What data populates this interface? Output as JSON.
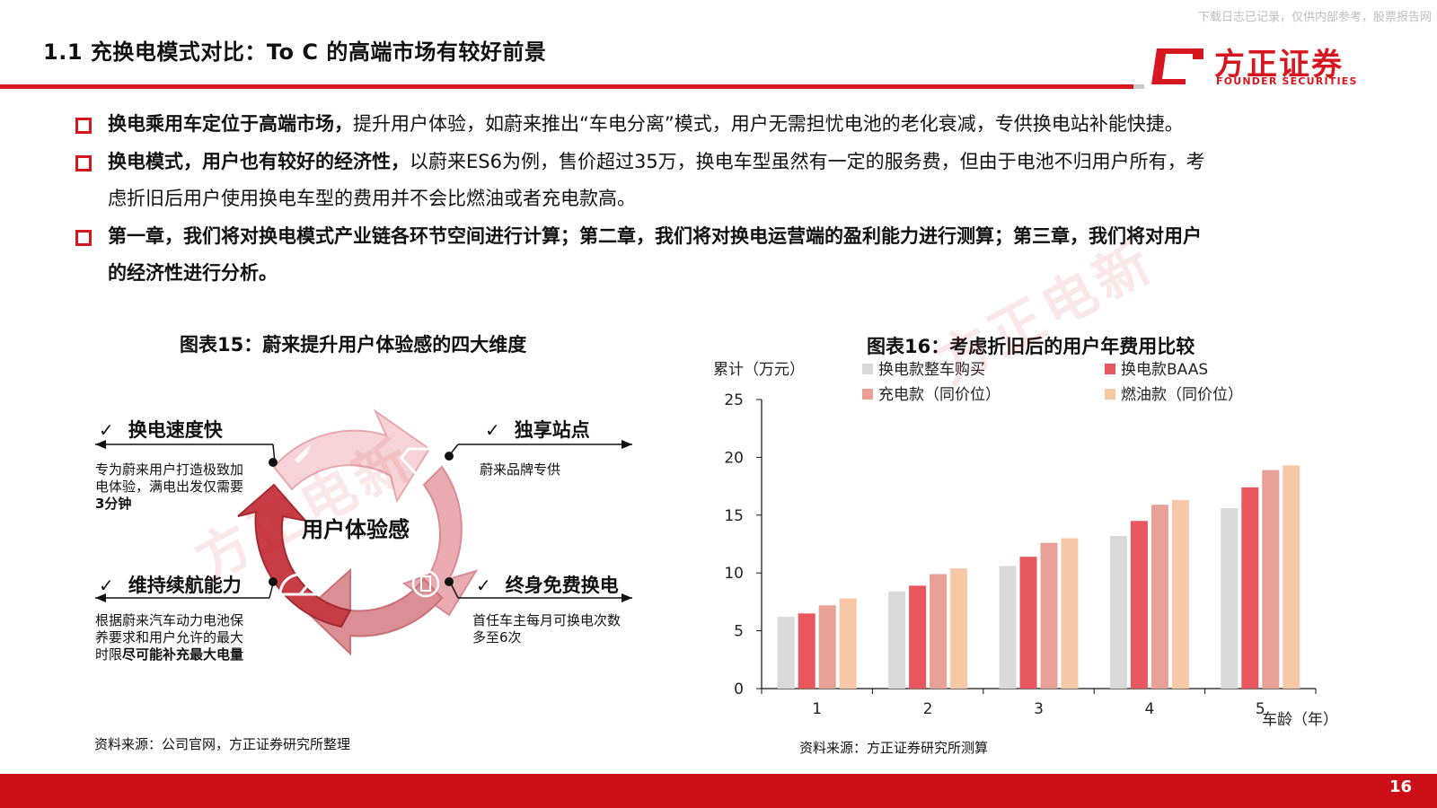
{
  "header": {
    "title": "1.1 充换电模式对比：To C 的高端市场有较好前景",
    "top_note": "下载日志已记录，仅供内部参考，股票报告网"
  },
  "logo": {
    "cn": "方正证券",
    "en": "FOUNDER SECURITIES"
  },
  "bullets": [
    {
      "bold": "换电乘用车定位于高端市场，",
      "text": "提升用户体验，如蔚来推出“车电分离”模式，用户无需担忧电池的老化衰减，专供换电站补能快捷。"
    },
    {
      "bold": "换电模式，用户也有较好的经济性，",
      "text": "以蔚来ES6为例，售价超过35万，换电车型虽然有一定的服务费，但由于电池不归用户所有，考",
      "text2": "虑折旧后用户使用换电车型的费用并不会比燃油或者充电款高。"
    },
    {
      "bold": "第一章，我们将对换电模式产业链各环节空间进行计算；第二章，我们将对换电运营端的盈利能力进行测算；第三章，我们将对用户",
      "bold2": "的经济性进行分析。"
    }
  ],
  "figure15": {
    "caption": "图表15：蔚来提升用户体验感的四大维度",
    "center_label": "用户体验感",
    "check": "✓",
    "items": [
      {
        "title": "换电速度快",
        "desc1": "专为蔚来用户打造极致加",
        "desc2": "电体验，满电出发仅需要",
        "desc3": "3分钟"
      },
      {
        "title": "独享站点",
        "desc1": "蔚来品牌专供"
      },
      {
        "title": "维持续航能力",
        "desc1": "根据蔚来汽车动力电池保",
        "desc2": "养要求和用户允许的最大",
        "desc3_plain": "时限",
        "desc3_bold": "尽可能补充最大电量"
      },
      {
        "title": "终身免费换电",
        "desc1": "首任车主每月可换电次数",
        "desc2": "多至6次"
      }
    ],
    "source": "资料来源：公司官网，方正证券研究所整理"
  },
  "figure16": {
    "caption": "图表16：考虑折旧后的用户年费用比较",
    "source": "资料来源：方正证券研究所测算"
  },
  "watermark": {
    "text": "方正电新"
  },
  "chart_data": {
    "type": "bar",
    "ylabel": "累计（万元）",
    "xlabel": "车龄（年）",
    "ylim": [
      0,
      25
    ],
    "yticks": [
      0,
      5,
      10,
      15,
      20,
      25
    ],
    "categories": [
      "1",
      "2",
      "3",
      "4",
      "5"
    ],
    "legend_position": "top",
    "series": [
      {
        "name": "换电款整车购买",
        "color": "#d9d9d9",
        "values": [
          6.2,
          8.4,
          10.6,
          13.2,
          15.6
        ]
      },
      {
        "name": "换电款BAAS",
        "color": "#e8575d",
        "values": [
          6.5,
          8.9,
          11.4,
          14.5,
          17.4
        ]
      },
      {
        "name": "充电款（同价位）",
        "color": "#e79f96",
        "values": [
          7.2,
          9.9,
          12.6,
          15.9,
          18.9
        ]
      },
      {
        "name": "燃油款（同价位）",
        "color": "#f6c8a6",
        "values": [
          7.8,
          10.4,
          13.0,
          16.3,
          19.3
        ]
      }
    ]
  },
  "footer": {
    "page": "16"
  }
}
